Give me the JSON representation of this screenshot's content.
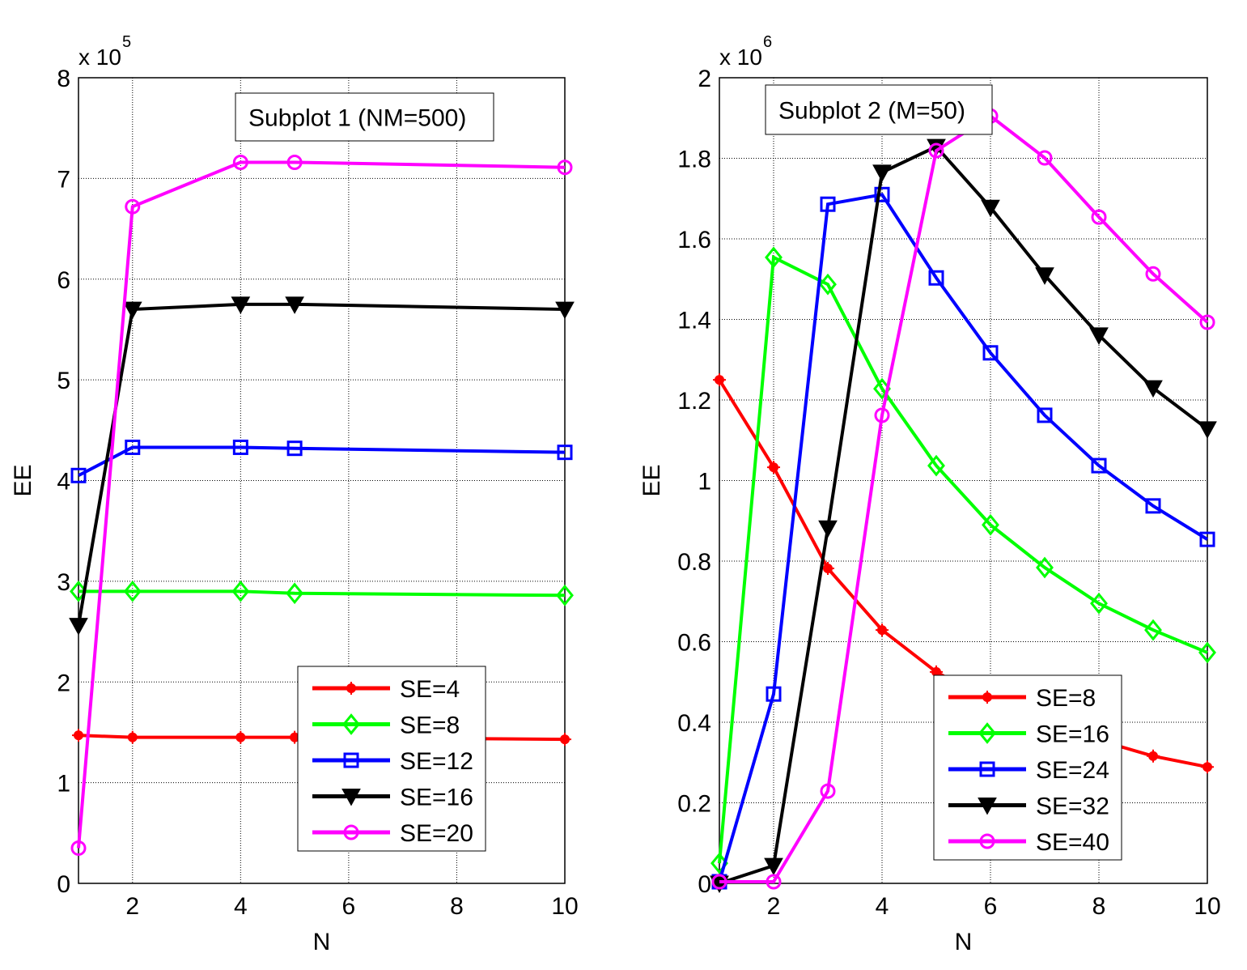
{
  "chart_data": [
    {
      "type": "line",
      "title": "Subplot 1 (NM=500)",
      "xlabel": "N",
      "ylabel": "EE",
      "y_exponent": "x 10",
      "y_exponent_power": "5",
      "xlim": [
        1,
        10
      ],
      "ylim": [
        0,
        8
      ],
      "xticks": [
        2,
        4,
        6,
        8,
        10
      ],
      "yticks": [
        0,
        1,
        2,
        3,
        4,
        5,
        6,
        7,
        8
      ],
      "ytick_labels": [
        "0",
        "1",
        "2",
        "3",
        "4",
        "5",
        "6",
        "7",
        "8"
      ],
      "grid": true,
      "legend_position": "bottom-right",
      "x": [
        1,
        2,
        4,
        5,
        10
      ],
      "series": [
        {
          "name": "SE=4",
          "color": "#ff0000",
          "marker": "dot-plus",
          "values": [
            1.47,
            1.45,
            1.45,
            1.45,
            1.43
          ]
        },
        {
          "name": "SE=8",
          "color": "#00ff00",
          "marker": "diamond",
          "values": [
            2.9,
            2.9,
            2.9,
            2.88,
            2.86
          ]
        },
        {
          "name": "SE=12",
          "color": "#0000ff",
          "marker": "square",
          "values": [
            4.05,
            4.33,
            4.33,
            4.32,
            4.28
          ]
        },
        {
          "name": "SE=16",
          "color": "#000000",
          "marker": "triangle-down",
          "values": [
            2.56,
            5.7,
            5.75,
            5.75,
            5.7
          ]
        },
        {
          "name": "SE=20",
          "color": "#ff00ff",
          "marker": "circle",
          "values": [
            0.35,
            6.72,
            7.16,
            7.16,
            7.11
          ]
        }
      ]
    },
    {
      "type": "line",
      "title": "Subplot 2 (M=50)",
      "xlabel": "N",
      "ylabel": "EE",
      "y_exponent": "x 10",
      "y_exponent_power": "6",
      "xlim": [
        1,
        10
      ],
      "ylim": [
        0,
        2
      ],
      "xticks": [
        2,
        4,
        6,
        8,
        10
      ],
      "yticks": [
        0,
        0.2,
        0.4,
        0.6,
        0.8,
        1,
        1.2,
        1.4,
        1.6,
        1.8,
        2
      ],
      "ytick_labels": [
        "0",
        "0.2",
        "0.4",
        "0.6",
        "0.8",
        "1",
        "1.2",
        "1.4",
        "1.6",
        "1.8",
        "2"
      ],
      "grid": true,
      "legend_position": "bottom-right",
      "x": [
        1,
        2,
        3,
        4,
        5,
        6,
        7,
        8,
        9,
        10
      ],
      "series": [
        {
          "name": "SE=8",
          "color": "#ff0000",
          "marker": "dot-plus",
          "values": [
            1.25,
            1.033,
            0.782,
            0.629,
            0.525,
            0.45,
            0.4,
            0.355,
            0.316,
            0.289
          ]
        },
        {
          "name": "SE=16",
          "color": "#00ff00",
          "marker": "diamond",
          "values": [
            0.05,
            1.554,
            1.487,
            1.228,
            1.037,
            0.89,
            0.784,
            0.695,
            0.629,
            0.573
          ]
        },
        {
          "name": "SE=24",
          "color": "#0000ff",
          "marker": "square",
          "values": [
            0.004,
            0.47,
            1.686,
            1.71,
            1.503,
            1.317,
            1.162,
            1.037,
            0.937,
            0.854
          ]
        },
        {
          "name": "SE=32",
          "color": "#000000",
          "marker": "triangle-down",
          "values": [
            0.0,
            0.044,
            0.882,
            1.765,
            1.829,
            1.678,
            1.51,
            1.361,
            1.23,
            1.128
          ]
        },
        {
          "name": "SE=40",
          "color": "#ff00ff",
          "marker": "circle",
          "values": [
            0.004,
            0.004,
            0.229,
            1.162,
            1.819,
            1.905,
            1.801,
            1.654,
            1.513,
            1.393
          ]
        }
      ]
    }
  ]
}
